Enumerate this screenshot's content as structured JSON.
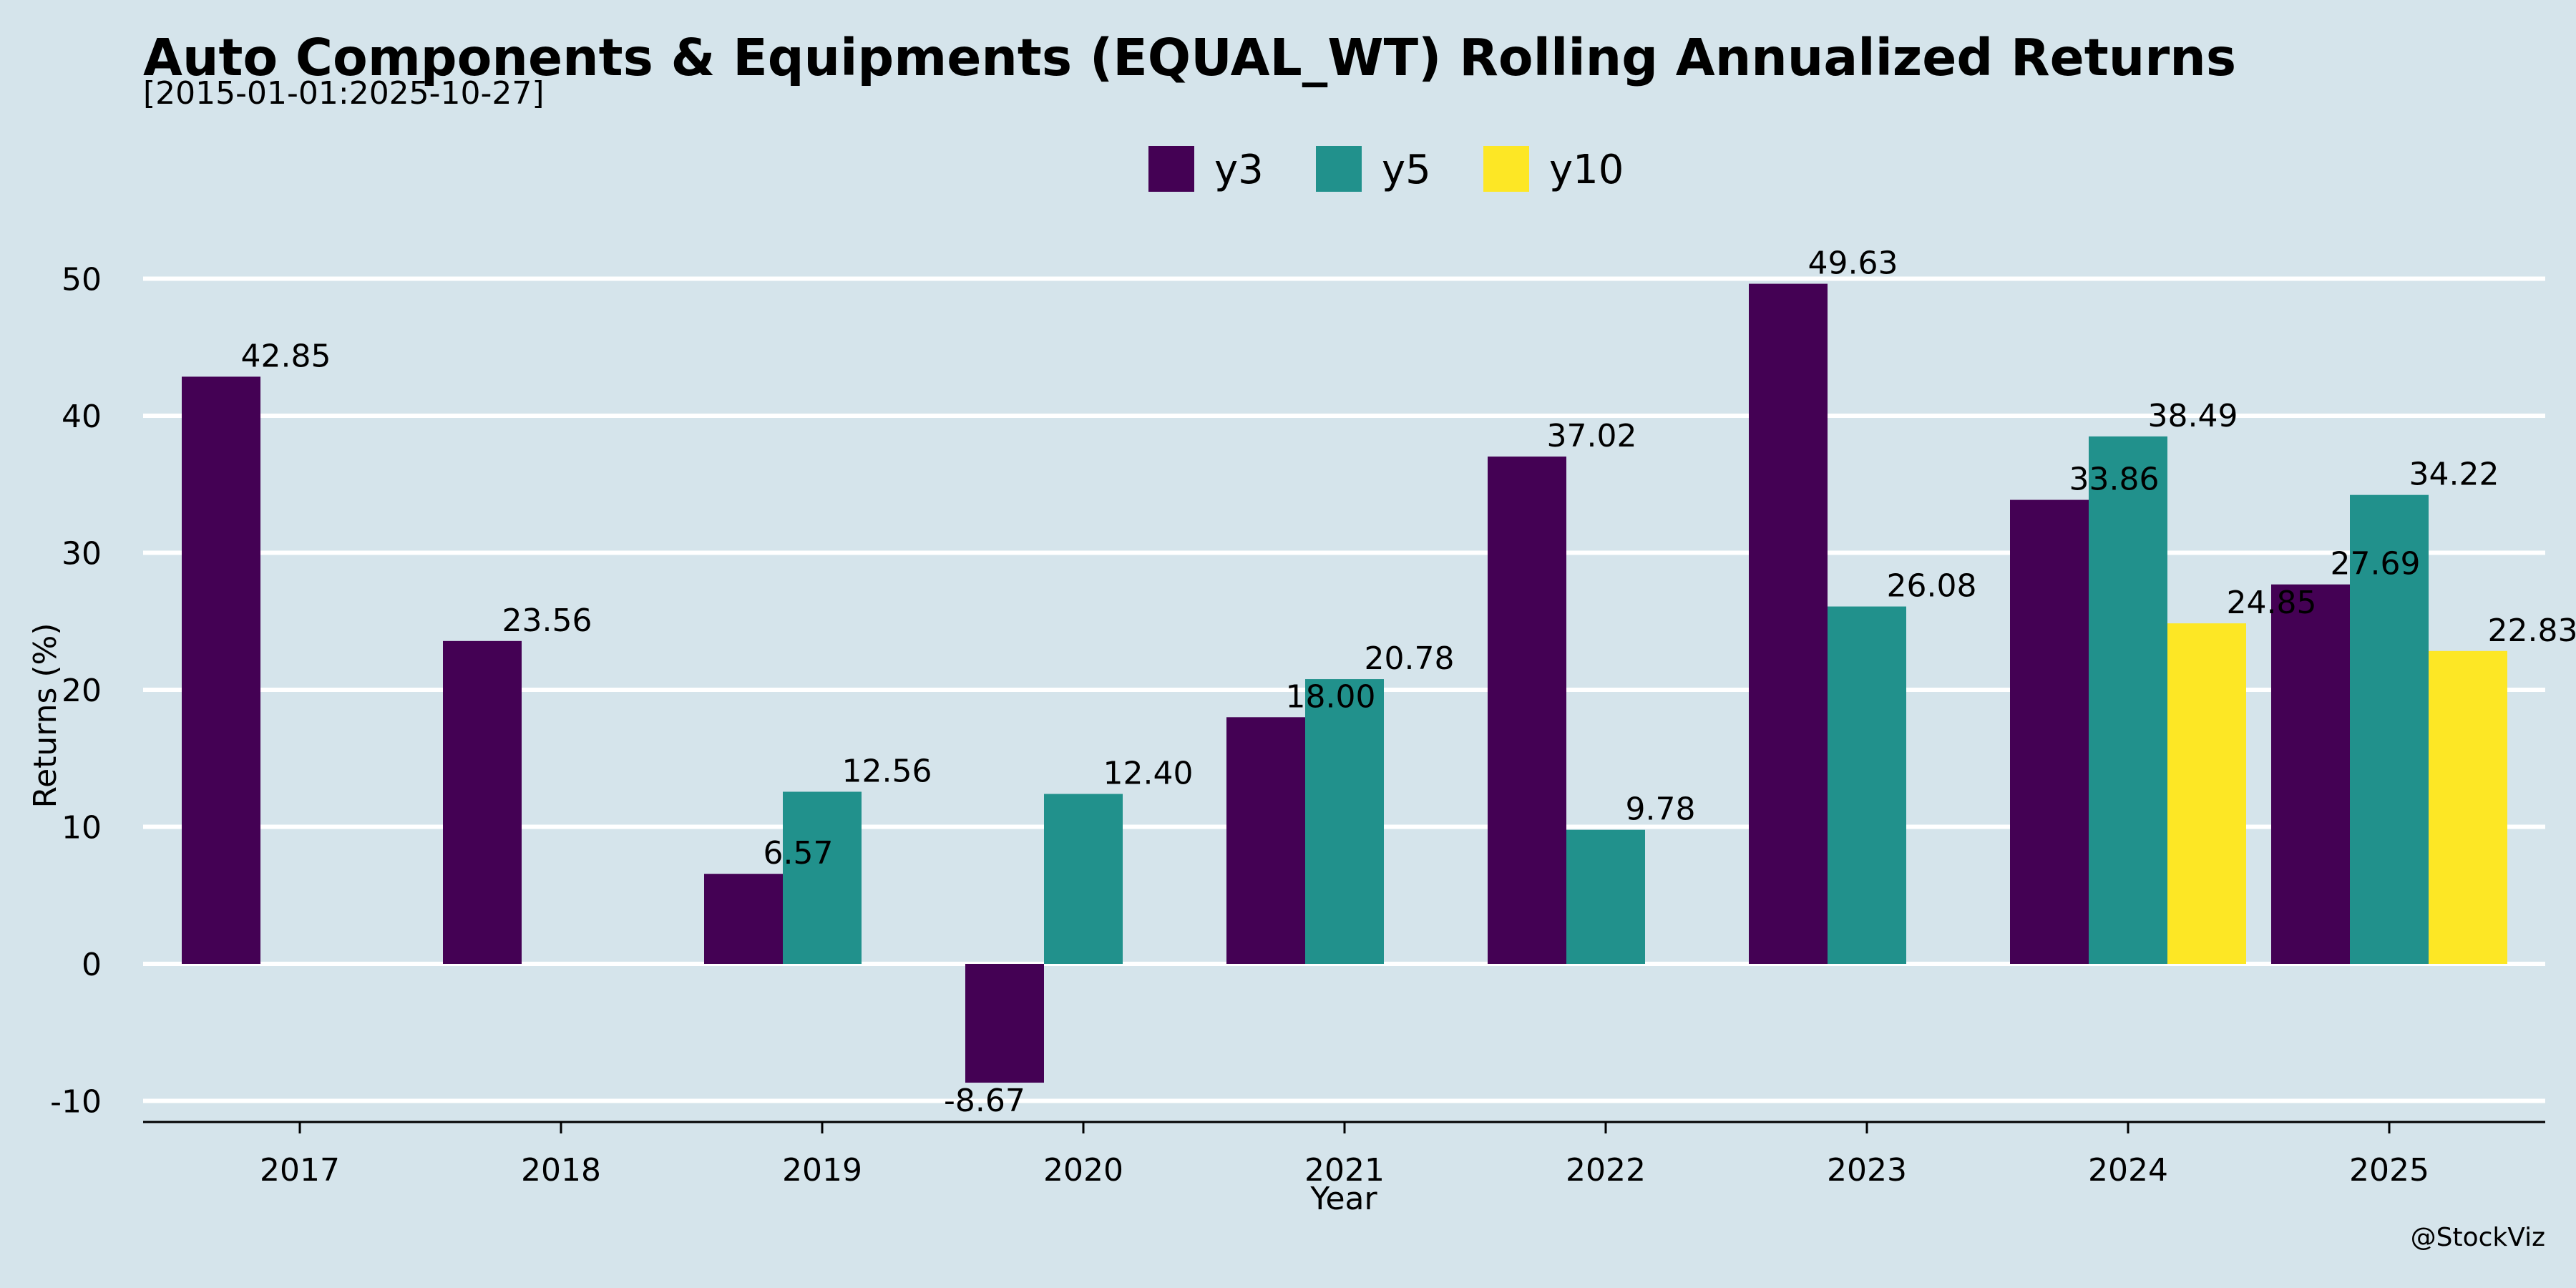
{
  "chart_data": {
    "type": "bar",
    "title": "Auto Components & Equipments (EQUAL_WT) Rolling Annualized Returns",
    "subtitle": "[2015-01-01:2025-10-27]",
    "xlabel": "Year",
    "ylabel": "Returns (%)",
    "categories": [
      "2017",
      "2018",
      "2019",
      "2020",
      "2021",
      "2022",
      "2023",
      "2024",
      "2025"
    ],
    "series": [
      {
        "name": "y3",
        "color": "#440154",
        "values": [
          42.85,
          23.56,
          6.57,
          -8.67,
          18.0,
          37.02,
          49.63,
          33.86,
          27.69
        ]
      },
      {
        "name": "y5",
        "color": "#21918c",
        "values": [
          null,
          null,
          12.56,
          12.4,
          20.78,
          9.78,
          26.08,
          38.49,
          34.22
        ]
      },
      {
        "name": "y10",
        "color": "#fde725",
        "values": [
          null,
          null,
          null,
          null,
          null,
          null,
          null,
          24.85,
          22.83
        ]
      }
    ],
    "ylim": [
      -10,
      50
    ],
    "yticks": [
      -10,
      0,
      10,
      20,
      30,
      40,
      50
    ],
    "grid": "horizontal",
    "legend_position": "top-center",
    "background": "#d5e4eb"
  },
  "credit": "@StockViz"
}
